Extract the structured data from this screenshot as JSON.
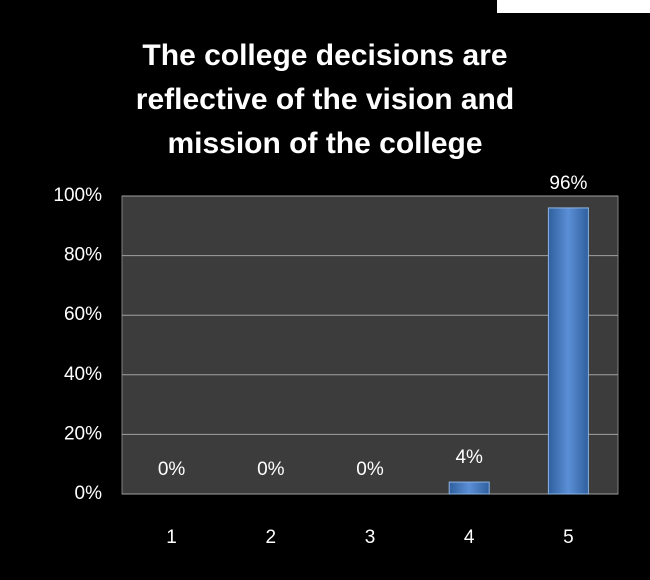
{
  "chart_data": {
    "type": "bar",
    "title": "The college decisions are reflective of the vision and mission of the college",
    "categories": [
      "1",
      "2",
      "3",
      "4",
      "5"
    ],
    "values": [
      0,
      0,
      0,
      4,
      96
    ],
    "value_labels": [
      "0%",
      "0%",
      "0%",
      "4%",
      "96%"
    ],
    "color": "#4f81bd",
    "ylim": [
      0,
      100
    ],
    "yticks": [
      {
        "value": 0,
        "label": "0%"
      },
      {
        "value": 20,
        "label": "20%"
      },
      {
        "value": 40,
        "label": "40%"
      },
      {
        "value": 60,
        "label": "60%"
      },
      {
        "value": 80,
        "label": "80%"
      },
      {
        "value": 100,
        "label": "100%"
      }
    ],
    "grid": true
  }
}
